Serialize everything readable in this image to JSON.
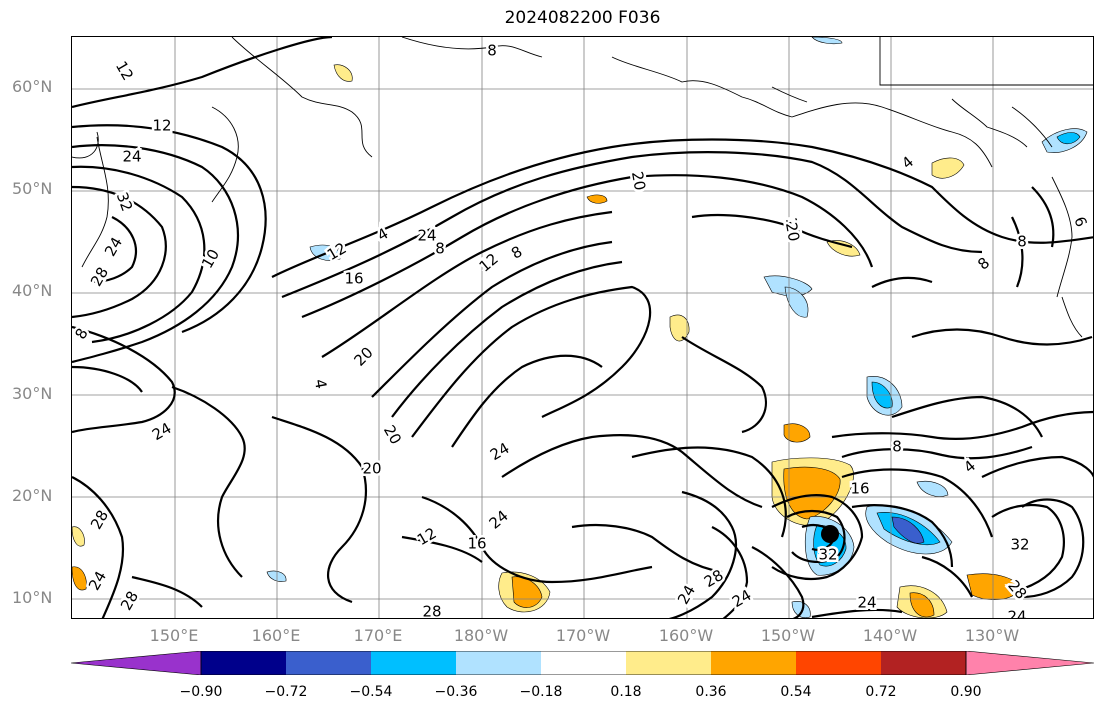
{
  "title": "2024082200 F036",
  "lat_labels": [
    "60°N",
    "50°N",
    "40°N",
    "30°N",
    "20°N",
    "10°N"
  ],
  "lon_labels": [
    "150°E",
    "160°E",
    "170°E",
    "180°W",
    "170°W",
    "160°W",
    "150°W",
    "140°W",
    "130°W"
  ],
  "colorbar": {
    "tick_labels": [
      "−0.90",
      "−0.72",
      "−0.54",
      "−0.36",
      "−0.18",
      "0.18",
      "0.36",
      "0.54",
      "0.72",
      "0.90"
    ],
    "colors": [
      "#9932CC",
      "#00008B",
      "#3A5FCD",
      "#00BFFF",
      "#B0E2FF",
      "#FFFFFF",
      "#FFEC8B",
      "#FFA500",
      "#FF4500",
      "#B22222",
      "#FF82AB"
    ]
  },
  "contour_labels": [
    "12",
    "8",
    "12",
    "24",
    "32",
    "24",
    "28",
    "8",
    "12",
    "16",
    "24",
    "10",
    "4",
    "4",
    "8",
    "20",
    "12",
    "8",
    "20",
    "16",
    "20",
    "24",
    "24",
    "20",
    "4",
    "8",
    "6",
    "8",
    "8",
    "4",
    "16",
    "32",
    "12",
    "16",
    "28",
    "24",
    "28",
    "24",
    "28",
    "24",
    "24",
    "28",
    "24",
    "20",
    "28",
    "24",
    "32"
  ],
  "legend_colors": {
    "contour": "#000000",
    "coast": "#000000",
    "grid": "#808080"
  }
}
